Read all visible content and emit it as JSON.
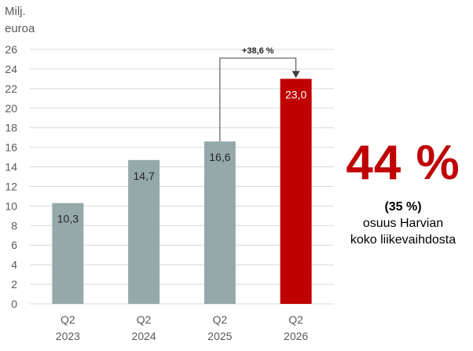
{
  "unit_label_line1": "Milj.",
  "unit_label_line2": "euroa",
  "change_label": "+38,6 %",
  "share": {
    "value": "44 %",
    "previous": "(35 %)",
    "line1": "osuus Harvian",
    "line2": "koko liikevaihdosta"
  },
  "colors": {
    "bar_default": "#95a9aa",
    "bar_highlight": "#c00000",
    "accent": "#c00000"
  },
  "chart_data": {
    "type": "bar",
    "categories": [
      "Q2\n2023",
      "Q2\n2024",
      "Q2\n2025",
      "Q2\n2026"
    ],
    "values": [
      10.3,
      14.7,
      16.6,
      23.0
    ],
    "value_labels": [
      "10,3",
      "14,7",
      "16,6",
      "23,0"
    ],
    "ylim": [
      0,
      26
    ],
    "yticks": [
      0,
      2,
      4,
      6,
      8,
      10,
      12,
      14,
      16,
      18,
      20,
      22,
      24,
      26
    ],
    "grid": true,
    "highlight_index": 3
  }
}
